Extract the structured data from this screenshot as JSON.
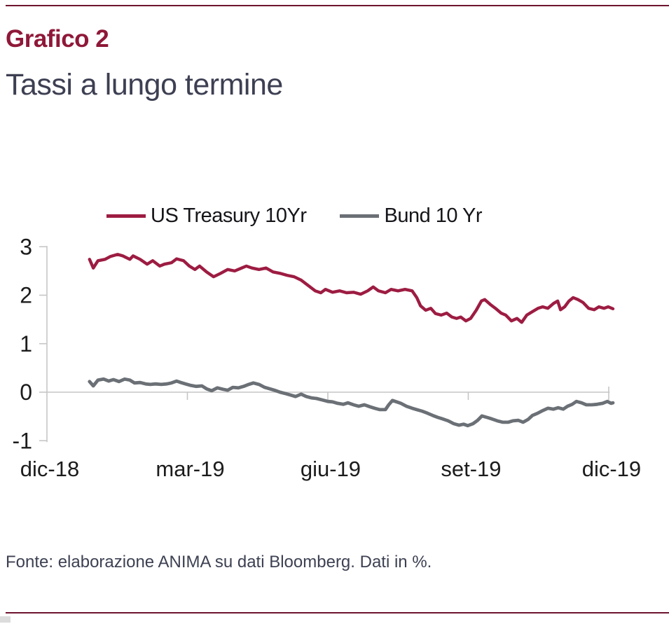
{
  "page": {
    "kicker": "Grafico 2",
    "title": "Tassi a lungo termine",
    "footer": "Fonte: elaborazione ANIMA su dati Bloomberg. Dati in %.",
    "colors": {
      "accent": "#8f1838",
      "rule": "#6e1430",
      "axis": "#c6c6c6",
      "axis_text": "#1c1c1c",
      "us_treasury_line": "#9d1c42",
      "bund_line": "#6b7076"
    }
  },
  "chart_data": {
    "type": "line",
    "title": "Tassi a lungo termine",
    "xlabel": "",
    "ylabel": "",
    "unit": "%",
    "x_unit": "months since dic-18",
    "xlim": [
      0,
      12.35
    ],
    "ylim": [
      -1,
      3
    ],
    "grid": "zero-line only, open axes",
    "legend_position": "top",
    "y_ticks": [
      3,
      2,
      1,
      0,
      -1
    ],
    "x_ticks": [
      {
        "pos": 0,
        "label": "dic-18"
      },
      {
        "pos": 3,
        "label": "mar-19"
      },
      {
        "pos": 6,
        "label": "giu-19"
      },
      {
        "pos": 9,
        "label": "set-19"
      },
      {
        "pos": 12,
        "label": "dic-19"
      }
    ],
    "series": [
      {
        "name": "US Treasury 10Yr",
        "color": "#9d1c42",
        "points": [
          [
            0.91,
            2.74
          ],
          [
            0.99,
            2.56
          ],
          [
            1.09,
            2.71
          ],
          [
            1.24,
            2.74
          ],
          [
            1.36,
            2.8
          ],
          [
            1.51,
            2.84
          ],
          [
            1.62,
            2.81
          ],
          [
            1.77,
            2.74
          ],
          [
            1.84,
            2.81
          ],
          [
            1.99,
            2.74
          ],
          [
            2.14,
            2.64
          ],
          [
            2.26,
            2.71
          ],
          [
            2.41,
            2.6
          ],
          [
            2.51,
            2.64
          ],
          [
            2.66,
            2.67
          ],
          [
            2.77,
            2.75
          ],
          [
            2.92,
            2.71
          ],
          [
            3.04,
            2.6
          ],
          [
            3.16,
            2.53
          ],
          [
            3.26,
            2.6
          ],
          [
            3.41,
            2.48
          ],
          [
            3.56,
            2.38
          ],
          [
            3.71,
            2.45
          ],
          [
            3.86,
            2.53
          ],
          [
            4.01,
            2.5
          ],
          [
            4.16,
            2.56
          ],
          [
            4.26,
            2.6
          ],
          [
            4.38,
            2.56
          ],
          [
            4.53,
            2.53
          ],
          [
            4.68,
            2.56
          ],
          [
            4.83,
            2.48
          ],
          [
            4.98,
            2.45
          ],
          [
            5.13,
            2.41
          ],
          [
            5.28,
            2.38
          ],
          [
            5.43,
            2.31
          ],
          [
            5.58,
            2.2
          ],
          [
            5.73,
            2.09
          ],
          [
            5.85,
            2.05
          ],
          [
            5.95,
            2.12
          ],
          [
            6.1,
            2.06
          ],
          [
            6.25,
            2.09
          ],
          [
            6.4,
            2.05
          ],
          [
            6.55,
            2.06
          ],
          [
            6.7,
            2.02
          ],
          [
            6.85,
            2.09
          ],
          [
            6.97,
            2.17
          ],
          [
            7.08,
            2.09
          ],
          [
            7.23,
            2.05
          ],
          [
            7.35,
            2.12
          ],
          [
            7.5,
            2.09
          ],
          [
            7.65,
            2.12
          ],
          [
            7.8,
            2.09
          ],
          [
            7.9,
            1.95
          ],
          [
            7.98,
            1.78
          ],
          [
            8.09,
            1.69
          ],
          [
            8.2,
            1.73
          ],
          [
            8.3,
            1.62
          ],
          [
            8.42,
            1.59
          ],
          [
            8.54,
            1.63
          ],
          [
            8.65,
            1.55
          ],
          [
            8.75,
            1.52
          ],
          [
            8.84,
            1.55
          ],
          [
            8.95,
            1.47
          ],
          [
            9.05,
            1.52
          ],
          [
            9.17,
            1.69
          ],
          [
            9.28,
            1.88
          ],
          [
            9.35,
            1.91
          ],
          [
            9.47,
            1.81
          ],
          [
            9.58,
            1.73
          ],
          [
            9.7,
            1.63
          ],
          [
            9.8,
            1.59
          ],
          [
            9.92,
            1.47
          ],
          [
            10.04,
            1.52
          ],
          [
            10.14,
            1.44
          ],
          [
            10.25,
            1.59
          ],
          [
            10.37,
            1.66
          ],
          [
            10.49,
            1.73
          ],
          [
            10.59,
            1.76
          ],
          [
            10.7,
            1.73
          ],
          [
            10.82,
            1.83
          ],
          [
            10.91,
            1.88
          ],
          [
            10.97,
            1.7
          ],
          [
            11.06,
            1.76
          ],
          [
            11.15,
            1.88
          ],
          [
            11.24,
            1.95
          ],
          [
            11.34,
            1.91
          ],
          [
            11.45,
            1.85
          ],
          [
            11.57,
            1.73
          ],
          [
            11.69,
            1.7
          ],
          [
            11.79,
            1.76
          ],
          [
            11.9,
            1.73
          ],
          [
            11.99,
            1.76
          ],
          [
            12.09,
            1.72
          ]
        ]
      },
      {
        "name": "Bund 10 Yr",
        "color": "#6b7076",
        "points": [
          [
            0.91,
            0.22
          ],
          [
            0.99,
            0.13
          ],
          [
            1.09,
            0.25
          ],
          [
            1.21,
            0.27
          ],
          [
            1.32,
            0.23
          ],
          [
            1.42,
            0.26
          ],
          [
            1.54,
            0.22
          ],
          [
            1.66,
            0.27
          ],
          [
            1.77,
            0.25
          ],
          [
            1.87,
            0.19
          ],
          [
            1.99,
            0.2
          ],
          [
            2.11,
            0.17
          ],
          [
            2.21,
            0.16
          ],
          [
            2.32,
            0.17
          ],
          [
            2.44,
            0.16
          ],
          [
            2.56,
            0.17
          ],
          [
            2.66,
            0.19
          ],
          [
            2.77,
            0.23
          ],
          [
            2.86,
            0.2
          ],
          [
            2.96,
            0.17
          ],
          [
            3.07,
            0.14
          ],
          [
            3.19,
            0.12
          ],
          [
            3.31,
            0.13
          ],
          [
            3.41,
            0.07
          ],
          [
            3.52,
            0.03
          ],
          [
            3.64,
            0.09
          ],
          [
            3.76,
            0.06
          ],
          [
            3.86,
            0.04
          ],
          [
            3.97,
            0.1
          ],
          [
            4.09,
            0.09
          ],
          [
            4.2,
            0.12
          ],
          [
            4.31,
            0.16
          ],
          [
            4.41,
            0.19
          ],
          [
            4.53,
            0.16
          ],
          [
            4.65,
            0.1
          ],
          [
            4.76,
            0.07
          ],
          [
            4.86,
            0.04
          ],
          [
            4.98,
            0.0
          ],
          [
            5.1,
            -0.03
          ],
          [
            5.21,
            -0.06
          ],
          [
            5.31,
            -0.09
          ],
          [
            5.43,
            -0.04
          ],
          [
            5.54,
            -0.09
          ],
          [
            5.66,
            -0.12
          ],
          [
            5.76,
            -0.13
          ],
          [
            5.88,
            -0.16
          ],
          [
            6.0,
            -0.19
          ],
          [
            6.1,
            -0.2
          ],
          [
            6.21,
            -0.23
          ],
          [
            6.33,
            -0.25
          ],
          [
            6.43,
            -0.22
          ],
          [
            6.55,
            -0.26
          ],
          [
            6.66,
            -0.29
          ],
          [
            6.78,
            -0.26
          ],
          [
            6.9,
            -0.3
          ],
          [
            7.0,
            -0.33
          ],
          [
            7.11,
            -0.36
          ],
          [
            7.23,
            -0.36
          ],
          [
            7.3,
            -0.26
          ],
          [
            7.38,
            -0.17
          ],
          [
            7.47,
            -0.2
          ],
          [
            7.56,
            -0.23
          ],
          [
            7.68,
            -0.29
          ],
          [
            7.8,
            -0.33
          ],
          [
            7.9,
            -0.36
          ],
          [
            8.01,
            -0.39
          ],
          [
            8.12,
            -0.43
          ],
          [
            8.24,
            -0.48
          ],
          [
            8.35,
            -0.52
          ],
          [
            8.45,
            -0.55
          ],
          [
            8.57,
            -0.59
          ],
          [
            8.69,
            -0.65
          ],
          [
            8.8,
            -0.68
          ],
          [
            8.9,
            -0.66
          ],
          [
            8.99,
            -0.69
          ],
          [
            9.1,
            -0.65
          ],
          [
            9.2,
            -0.58
          ],
          [
            9.29,
            -0.49
          ],
          [
            9.4,
            -0.52
          ],
          [
            9.5,
            -0.55
          ],
          [
            9.62,
            -0.59
          ],
          [
            9.74,
            -0.62
          ],
          [
            9.85,
            -0.62
          ],
          [
            9.95,
            -0.59
          ],
          [
            10.07,
            -0.58
          ],
          [
            10.17,
            -0.62
          ],
          [
            10.28,
            -0.56
          ],
          [
            10.37,
            -0.48
          ],
          [
            10.49,
            -0.43
          ],
          [
            10.59,
            -0.38
          ],
          [
            10.7,
            -0.33
          ],
          [
            10.82,
            -0.35
          ],
          [
            10.92,
            -0.32
          ],
          [
            11.03,
            -0.35
          ],
          [
            11.12,
            -0.29
          ],
          [
            11.22,
            -0.25
          ],
          [
            11.31,
            -0.19
          ],
          [
            11.42,
            -0.22
          ],
          [
            11.52,
            -0.26
          ],
          [
            11.64,
            -0.26
          ],
          [
            11.75,
            -0.25
          ],
          [
            11.87,
            -0.23
          ],
          [
            11.97,
            -0.19
          ],
          [
            12.05,
            -0.23
          ],
          [
            12.09,
            -0.22
          ]
        ]
      }
    ]
  }
}
